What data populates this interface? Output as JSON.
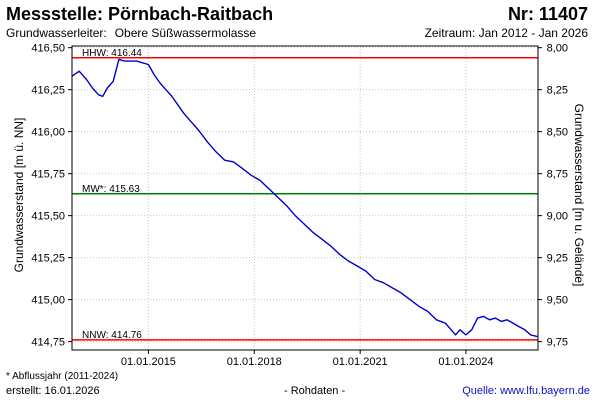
{
  "header": {
    "title": "Messstelle: Pörnbach-Raitbach",
    "number": "Nr: 11407",
    "aquifer_label": "Grundwasserleiter:",
    "aquifer_value": "Obere Süßwassermolasse",
    "period": "Zeitraum: Jan 2012 - Jan 2026"
  },
  "footer": {
    "footnote": "* Abflussjahr (2011-2024)",
    "created": "erstellt:  16.01.2026",
    "raw": "- Rohdaten -",
    "source": "Quelle:  www.lfu.bayern.de"
  },
  "colors": {
    "series": "#0000cc",
    "hhw": "#ff0000",
    "mw": "#008000",
    "nnw": "#ff0000",
    "frame": "#000000",
    "grid": "#c8c8c8"
  },
  "chart_data": {
    "type": "line",
    "xlabel": "",
    "ylabel": "Grundwasserstand [m ü. NN]",
    "ylabel_right": "Grundwasserstand [m u. Gelände]",
    "xlim": [
      "2012-11-01",
      "2026-01-16"
    ],
    "ylim": [
      414.7,
      416.51
    ],
    "x_ticks": [
      "01.01.2015",
      "01.01.2018",
      "01.01.2021",
      "01.01.2024"
    ],
    "y_ticks": [
      "416,50",
      "416,25",
      "416,00",
      "415,75",
      "415,50",
      "415,25",
      "415,00",
      "414,75"
    ],
    "y_ticks_right": [
      "8,00",
      "8,25",
      "8,50",
      "8,75",
      "9,00",
      "9,25",
      "9,50",
      "9,75"
    ],
    "grid": true,
    "reference_lines": [
      {
        "label": "HHW: 416.44",
        "value": 416.44,
        "color": "#ff0000"
      },
      {
        "label": "MW*: 415.63",
        "value": 415.63,
        "color": "#008000"
      },
      {
        "label": "NNW: 414.76",
        "value": 414.76,
        "color": "#ff0000"
      }
    ],
    "series": [
      {
        "name": "",
        "x": [
          "2012-11-01",
          "2013-01-15",
          "2013-04-01",
          "2013-06-01",
          "2013-08-01",
          "2013-09-15",
          "2013-11-01",
          "2014-01-01",
          "2014-03-01",
          "2014-05-01",
          "2014-07-01",
          "2014-09-01",
          "2014-11-01",
          "2015-01-01",
          "2015-03-01",
          "2015-05-01",
          "2015-07-01",
          "2015-09-01",
          "2015-11-01",
          "2016-01-01",
          "2016-03-01",
          "2016-06-01",
          "2016-09-01",
          "2016-12-01",
          "2017-03-01",
          "2017-06-01",
          "2017-09-01",
          "2017-12-01",
          "2018-03-01",
          "2018-06-01",
          "2018-09-01",
          "2018-12-01",
          "2019-03-01",
          "2019-06-01",
          "2019-09-01",
          "2019-12-01",
          "2020-03-01",
          "2020-06-01",
          "2020-09-01",
          "2020-12-01",
          "2021-03-01",
          "2021-06-01",
          "2021-09-01",
          "2021-12-01",
          "2022-03-01",
          "2022-06-01",
          "2022-09-01",
          "2022-12-01",
          "2023-03-01",
          "2023-06-01",
          "2023-08-01",
          "2023-09-15",
          "2023-11-01",
          "2024-01-01",
          "2024-03-01",
          "2024-05-01",
          "2024-07-01",
          "2024-09-01",
          "2024-11-01",
          "2025-01-01",
          "2025-03-01",
          "2025-05-01",
          "2025-07-01",
          "2025-09-01",
          "2025-11-01",
          "2026-01-10"
        ],
        "y": [
          416.33,
          416.36,
          416.31,
          416.26,
          416.22,
          416.21,
          416.26,
          416.3,
          416.43,
          416.42,
          416.42,
          416.42,
          416.41,
          416.4,
          416.34,
          416.29,
          416.25,
          416.21,
          416.16,
          416.11,
          416.07,
          416.01,
          415.94,
          415.88,
          415.83,
          415.82,
          415.78,
          415.74,
          415.71,
          415.66,
          415.61,
          415.56,
          415.5,
          415.45,
          415.4,
          415.36,
          415.32,
          415.27,
          415.23,
          415.2,
          415.17,
          415.12,
          415.1,
          415.07,
          415.04,
          415.0,
          414.96,
          414.93,
          414.88,
          414.86,
          414.82,
          414.79,
          414.82,
          414.79,
          414.82,
          414.89,
          414.9,
          414.88,
          414.89,
          414.87,
          414.88,
          414.86,
          414.84,
          414.82,
          414.79,
          414.78
        ]
      }
    ]
  }
}
